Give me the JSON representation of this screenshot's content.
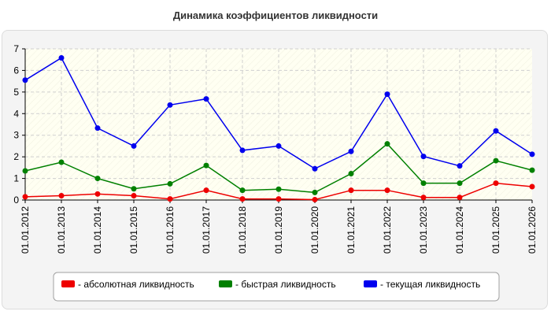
{
  "chart_data": {
    "type": "line",
    "title": "Динамика коэффициентов ликвидности",
    "xlabel": "",
    "ylabel": "",
    "categories": [
      "01.01.2012",
      "01.01.2013",
      "01.01.2014",
      "01.01.2015",
      "01.01.2016",
      "01.01.2017",
      "01.01.2018",
      "01.01.2019",
      "01.01.2020",
      "01.01.2021",
      "01.01.2022",
      "01.01.2023",
      "01.01.2024",
      "01.01.2025",
      "01.01.2026"
    ],
    "ylim": [
      0,
      7
    ],
    "yticks": [
      "0",
      "1",
      "2",
      "3",
      "4",
      "5",
      "6",
      "7"
    ],
    "grid": true,
    "legend_position": "bottom",
    "series": [
      {
        "name": "- абсолютная ликвидность",
        "color": "#ee0000",
        "values": [
          0.15,
          0.2,
          0.28,
          0.2,
          0.05,
          0.45,
          0.05,
          0.05,
          0.02,
          0.45,
          0.45,
          0.12,
          0.12,
          0.78,
          0.62
        ]
      },
      {
        "name": "- быстрая ликвидность",
        "color": "#008000",
        "values": [
          1.35,
          1.75,
          1.0,
          0.52,
          0.75,
          1.6,
          0.45,
          0.5,
          0.35,
          1.22,
          2.6,
          0.78,
          0.78,
          1.82,
          1.38
        ]
      },
      {
        "name": "- текущая ликвидность",
        "color": "#0000ee",
        "values": [
          5.55,
          6.58,
          3.33,
          2.5,
          4.4,
          4.68,
          2.3,
          2.5,
          1.45,
          2.25,
          4.9,
          2.02,
          1.58,
          3.2,
          2.12
        ]
      }
    ]
  }
}
